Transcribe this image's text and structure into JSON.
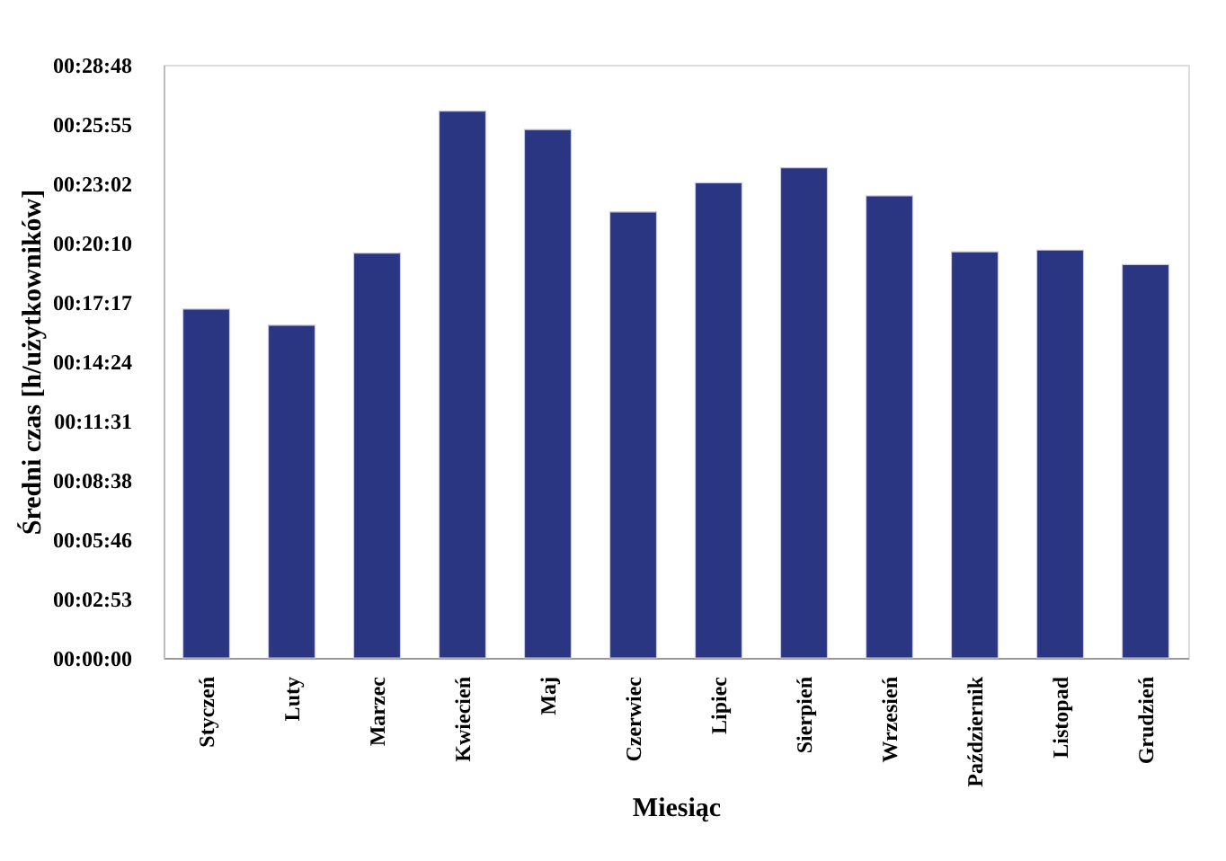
{
  "chart_data": {
    "type": "bar",
    "xlabel": "Miesiąc",
    "ylabel": "Średni czas [h/użytkowników]",
    "categories": [
      "Styczeń",
      "Luty",
      "Marzec",
      "Kwiecień",
      "Maj",
      "Czerwiec",
      "Lipiec",
      "Sierpień",
      "Wrzesień",
      "Październik",
      "Listopad",
      "Grudzień"
    ],
    "values": [
      1016,
      969,
      1179,
      1593,
      1539,
      1299,
      1384,
      1428,
      1346,
      1183,
      1188,
      1146
    ],
    "color": "#2a3682",
    "ylim": [
      0,
      1728
    ],
    "yticks": [
      {
        "value": 0,
        "label": "00:00:00"
      },
      {
        "value": 172.8,
        "label": "00:02:53"
      },
      {
        "value": 345.6,
        "label": "00:05:46"
      },
      {
        "value": 518.4,
        "label": "00:08:38"
      },
      {
        "value": 691.2,
        "label": "00:11:31"
      },
      {
        "value": 864,
        "label": "00:14:24"
      },
      {
        "value": 1036.8,
        "label": "00:17:17"
      },
      {
        "value": 1209.6,
        "label": "00:20:10"
      },
      {
        "value": 1382.4,
        "label": "00:23:02"
      },
      {
        "value": 1555.2,
        "label": "00:25:55"
      },
      {
        "value": 1728,
        "label": "00:28:48"
      }
    ],
    "grid": false,
    "legend": false
  }
}
